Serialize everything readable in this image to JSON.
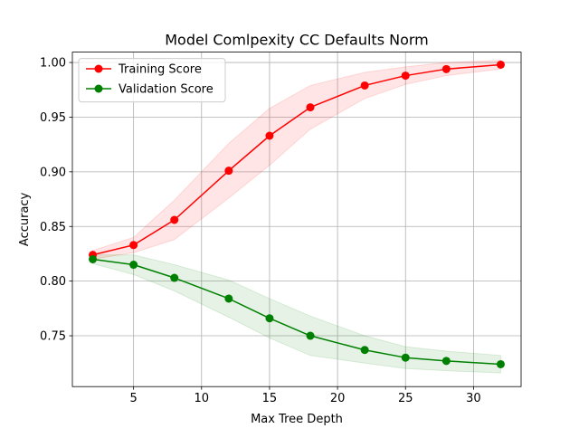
{
  "chart_data": {
    "type": "line",
    "title": "Model Comlpexity CC Defaults Norm",
    "xlabel": "Max Tree Depth",
    "ylabel": "Accuracy",
    "xlim": [
      0.5,
      33.5
    ],
    "ylim": [
      0.7035,
      1.0095
    ],
    "x_ticks": [
      5,
      10,
      15,
      20,
      25,
      30
    ],
    "x_tick_labels": [
      "5",
      "10",
      "15",
      "20",
      "25",
      "30"
    ],
    "y_ticks": [
      0.75,
      0.8,
      0.85,
      0.9,
      0.95,
      1.0
    ],
    "y_tick_labels": [
      "0.75",
      "0.80",
      "0.85",
      "0.90",
      "0.95",
      "1.00"
    ],
    "grid": true,
    "legend_position": "upper-left",
    "x": [
      2,
      5,
      8,
      12,
      15,
      18,
      22,
      25,
      28,
      32
    ],
    "series": [
      {
        "name": "Training Score",
        "color": "#ff0000",
        "band_color": "#ff0000",
        "marker": "circle",
        "values": [
          0.824,
          0.833,
          0.856,
          0.901,
          0.933,
          0.959,
          0.979,
          0.988,
          0.994,
          0.998
        ],
        "lower": [
          0.82,
          0.826,
          0.838,
          0.876,
          0.906,
          0.939,
          0.967,
          0.98,
          0.988,
          0.994
        ],
        "upper": [
          0.828,
          0.84,
          0.874,
          0.926,
          0.958,
          0.979,
          0.991,
          0.996,
          1.0,
          1.002
        ]
      },
      {
        "name": "Validation Score",
        "color": "#008000",
        "band_color": "#008000",
        "marker": "circle",
        "values": [
          0.82,
          0.815,
          0.803,
          0.784,
          0.766,
          0.75,
          0.737,
          0.73,
          0.727,
          0.724
        ],
        "lower": [
          0.816,
          0.806,
          0.791,
          0.767,
          0.748,
          0.732,
          0.725,
          0.72,
          0.718,
          0.716
        ],
        "upper": [
          0.824,
          0.824,
          0.815,
          0.801,
          0.784,
          0.768,
          0.75,
          0.74,
          0.736,
          0.732
        ]
      }
    ]
  }
}
